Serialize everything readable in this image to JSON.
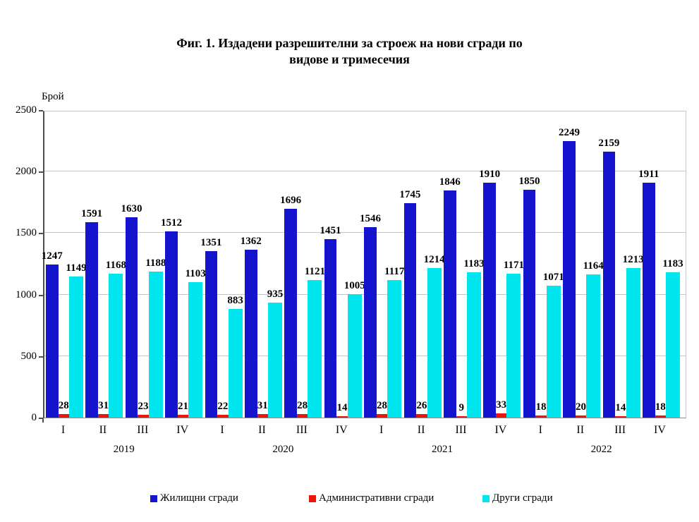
{
  "title": {
    "line1": "Фиг. 1. Издадени разрешителни за строеж на нови сгради по",
    "line2": "видове и тримесечия"
  },
  "y_axis": {
    "unit_label": "Брой",
    "ticks": [
      0,
      500,
      1000,
      1500,
      2000,
      2500
    ]
  },
  "colors": {
    "residential": "#1414ce",
    "administrative": "#ee1409",
    "other": "#00e6ee",
    "gridline": "#c6c6c6",
    "axis": "#4d4d4d",
    "text": "#000000"
  },
  "chart_data": {
    "type": "bar",
    "categories": [
      "I",
      "II",
      "III",
      "IV",
      "I",
      "II",
      "III",
      "IV",
      "I",
      "II",
      "III",
      "IV",
      "I",
      "II",
      "III",
      "IV"
    ],
    "year_groups": [
      {
        "label": "2019",
        "start": 0,
        "span": 4
      },
      {
        "label": "2020",
        "start": 4,
        "span": 4
      },
      {
        "label": "2021",
        "start": 8,
        "span": 4
      },
      {
        "label": "2022",
        "start": 12,
        "span": 4
      }
    ],
    "series": [
      {
        "name": "Жилищни сгради",
        "color": "#1414ce",
        "values": [
          1247,
          1591,
          1630,
          1512,
          1351,
          1362,
          1696,
          1451,
          1546,
          1745,
          1846,
          1910,
          1850,
          2249,
          2159,
          1911
        ]
      },
      {
        "name": "Административни сгради",
        "color": "#ee1409",
        "values": [
          28,
          31,
          23,
          21,
          22,
          31,
          28,
          14,
          28,
          26,
          9,
          33,
          18,
          20,
          14,
          18
        ]
      },
      {
        "name": "Други сгради",
        "color": "#00e6ee",
        "values": [
          1149,
          1168,
          1188,
          1103,
          883,
          935,
          1121,
          1005,
          1117,
          1214,
          1183,
          1171,
          1071,
          1164,
          1213,
          1183
        ]
      }
    ],
    "title": "Фиг. 1. Издадени разрешителни за строеж на нови сгради по видове и тримесечия",
    "xlabel": "",
    "ylabel": "Брой",
    "ylim": [
      0,
      2500
    ],
    "grid": true,
    "data_labels": true,
    "legend_position": "bottom"
  }
}
